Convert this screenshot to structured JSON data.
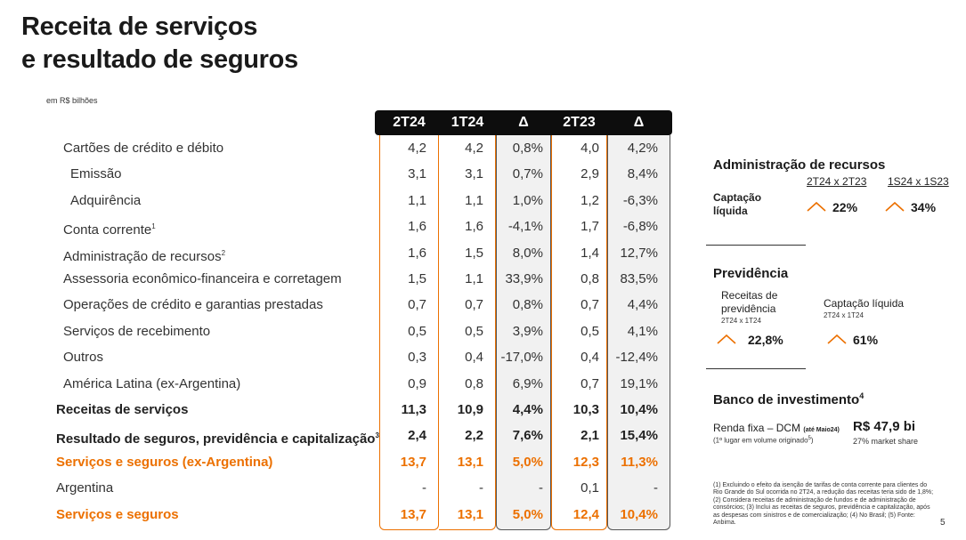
{
  "title_line1": "Receita de serviços",
  "title_line2": "e resultado de seguros",
  "unit": "em R$ bilhões",
  "columns": [
    "2T24",
    "1T24",
    "Δ",
    "2T23",
    "Δ"
  ],
  "rows": [
    {
      "label": "Cartões de crédito e débito",
      "sup": "",
      "values": [
        "4,2",
        "4,2",
        "0,8%",
        "4,0",
        "4,2%"
      ]
    },
    {
      "label": "Emissão",
      "sup": "",
      "values": [
        "3,1",
        "3,1",
        "0,7%",
        "2,9",
        "8,4%"
      ]
    },
    {
      "label": "Adquirência",
      "sup": "",
      "values": [
        "1,1",
        "1,1",
        "1,0%",
        "1,2",
        "-6,3%"
      ]
    },
    {
      "label": "Conta corrente",
      "sup": "1",
      "values": [
        "1,6",
        "1,6",
        "-4,1%",
        "1,7",
        "-6,8%"
      ]
    },
    {
      "label": "Administração de recursos",
      "sup": "2",
      "values": [
        "1,6",
        "1,5",
        "8,0%",
        "1,4",
        "12,7%"
      ]
    },
    {
      "label": "Assessoria econômico-financeira e corretagem",
      "sup": "",
      "values": [
        "1,5",
        "1,1",
        "33,9%",
        "0,8",
        "83,5%"
      ]
    },
    {
      "label": "Operações de crédito e garantias prestadas",
      "sup": "",
      "values": [
        "0,7",
        "0,7",
        "0,8%",
        "0,7",
        "4,4%"
      ]
    },
    {
      "label": "Serviços de recebimento",
      "sup": "",
      "values": [
        "0,5",
        "0,5",
        "3,9%",
        "0,5",
        "4,1%"
      ]
    },
    {
      "label": "Outros",
      "sup": "",
      "values": [
        "0,3",
        "0,4",
        "-17,0%",
        "0,4",
        "-12,4%"
      ]
    },
    {
      "label": "América Latina (ex-Argentina)",
      "sup": "",
      "values": [
        "0,9",
        "0,8",
        "6,9%",
        "0,7",
        "19,1%"
      ]
    },
    {
      "label": "Receitas de serviços",
      "sup": "",
      "values": [
        "11,3",
        "10,9",
        "4,4%",
        "10,3",
        "10,4%"
      ]
    },
    {
      "label": "Resultado de seguros, previdência e capitalização",
      "sup": "3",
      "values": [
        "2,4",
        "2,2",
        "7,6%",
        "2,1",
        "15,4%"
      ]
    },
    {
      "label": "Serviços e seguros (ex-Argentina)",
      "sup": "",
      "values": [
        "13,7",
        "13,1",
        "5,0%",
        "12,3",
        "11,3%"
      ]
    },
    {
      "label": "Argentina",
      "sup": "",
      "values": [
        "-",
        "-",
        "-",
        "0,1",
        "-"
      ]
    },
    {
      "label": "Serviços e seguros",
      "sup": "",
      "values": [
        "13,7",
        "13,1",
        "5,0%",
        "12,4",
        "10,4%"
      ]
    }
  ],
  "admin": {
    "heading": "Administração de recursos",
    "col1": "2T24 x 2T23",
    "col2": "1S24 x 1S23",
    "label_line1": "Captação",
    "label_line2": "líquida",
    "val1": "22%",
    "val2": "34%"
  },
  "previdencia": {
    "heading": "Previdência",
    "item1_line1": "Receitas de",
    "item1_line2": "previdência",
    "item1_sub": "2T24 x 1T24",
    "item1_val": "22,8%",
    "item2_label": "Captação líquida",
    "item2_sub": "2T24 x 1T24",
    "item2_val": "61%"
  },
  "banco": {
    "heading": "Banco de investimento",
    "heading_sup": "4",
    "label": "Renda fixa – DCM",
    "label_small": "(até Maio24)",
    "sub": "(1º lugar em volume originado",
    "sub_sup": "5",
    "sub_end": ")",
    "value": "R$ 47,9 bi",
    "share": "27% market share"
  },
  "footnote": "(1) Excluindo o efeito da isenção de tarifas de conta corrente para clientes do Rio Grande do Sul ocorrida no 2T24, a redução das receitas teria sido de 1,8%; (2) Considera receitas de administração de fundos e de administração de consórcios; (3) Inclui as receitas de seguros, previdência e capitalização, após as despesas com sinistros e de comercialização; (4) No Brasil; (5) Fonte: Anbima.",
  "page_number": "5",
  "colors": {
    "accent": "#ec7000",
    "header_bg": "#0d0d0d",
    "grey_col": "#f1f1f1"
  }
}
